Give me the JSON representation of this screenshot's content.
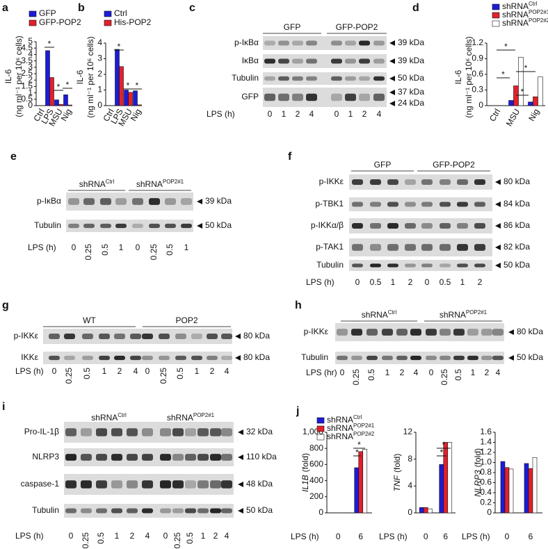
{
  "chart_data": [
    {
      "type": "bar",
      "label": "a",
      "ylabel": "IL-6",
      "ylabel_unit": "(ng ml⁻¹ per 10⁶ cells)",
      "categories": [
        "Ctrl",
        "LPS",
        "MSU",
        "Nig"
      ],
      "series": [
        {
          "name": "GFP",
          "color": "#1c1cd8",
          "values": [
            0,
            4.3,
            0.45,
            0.85
          ]
        },
        {
          "name": "GFP-POP2",
          "color": "#e3202b",
          "values": [
            0,
            2.2,
            0.1,
            0.05
          ]
        }
      ],
      "ylim": [
        0,
        5
      ],
      "yticks": [
        0,
        0.5,
        1,
        1.5,
        2,
        2.5,
        3,
        3.5,
        4,
        4.5,
        5
      ],
      "annotations": [
        "*",
        "*",
        "*"
      ]
    },
    {
      "type": "bar",
      "label": "b",
      "ylabel": "IL-6",
      "ylabel_unit": "(ng ml⁻¹ per 10⁶ cells)",
      "categories": [
        "Ctrl",
        "LPS",
        "MSU",
        "Nig"
      ],
      "series": [
        {
          "name": "Ctrl",
          "color": "#1c1cd8",
          "values": [
            0,
            3.6,
            1.0,
            0.95
          ]
        },
        {
          "name": "His-POP2",
          "color": "#e3202b",
          "values": [
            0,
            2.5,
            0.85,
            0.05
          ]
        }
      ],
      "ylim": [
        0,
        4
      ],
      "yticks": [
        0,
        1,
        2,
        3,
        4
      ],
      "annotations": [
        "*",
        "*",
        "*"
      ]
    },
    {
      "type": "bar",
      "label": "d",
      "ylabel": "IL-6",
      "ylabel_unit": "(ng ml⁻¹ per 10⁶ cells)",
      "categories": [
        "Ctrl",
        "MSU",
        "Nig"
      ],
      "series": [
        {
          "name": "shRNA",
          "superscript": "Ctrl",
          "color": "#1c1cd8",
          "values": [
            0,
            0.1,
            0.07
          ]
        },
        {
          "name": "shRNA",
          "superscript": "POP2#1",
          "color": "#e3202b",
          "values": [
            0,
            0.38,
            0.17
          ]
        },
        {
          "name": "shRNA",
          "superscript": "POP2#2",
          "color": "#ffffff",
          "values": [
            0,
            0.93,
            0.55
          ]
        }
      ],
      "ylim": [
        0,
        1.2
      ],
      "yticks": [
        0,
        0.3,
        0.6,
        0.9,
        1.2
      ],
      "annotations": [
        "*",
        "*",
        "*",
        "*"
      ]
    },
    {
      "type": "bar",
      "label": "j",
      "ylabel_gene": "IL1B",
      "ylabel": "(fold)",
      "xlabel": "LPS (h)",
      "categories": [
        "0",
        "6"
      ],
      "series": [
        {
          "name": "shRNA",
          "superscript": "Ctrl",
          "color": "#1c1cd8",
          "values": [
            1,
            560
          ]
        },
        {
          "name": "shRNA",
          "superscript": "POP2#1",
          "color": "#e3202b",
          "values": [
            1,
            760
          ]
        },
        {
          "name": "shRNA",
          "superscript": "POP2#2",
          "color": "#ffffff",
          "values": [
            1,
            790
          ]
        }
      ],
      "ylim": [
        0,
        1000
      ],
      "yticks": [
        0,
        200,
        400,
        600,
        800,
        {
          "value": 1000,
          "label": "1,000"
        }
      ],
      "annotations": [
        "*",
        "*"
      ]
    },
    {
      "type": "bar",
      "ylabel_gene": "TNF",
      "ylabel": "(fold)",
      "xlabel": "LPS (h)",
      "categories": [
        "0",
        "6"
      ],
      "series": [
        {
          "color": "#1c1cd8",
          "values": [
            0.8,
            7.2
          ]
        },
        {
          "color": "#e3202b",
          "values": [
            0.8,
            10.5
          ]
        },
        {
          "color": "#ffffff",
          "values": [
            0.6,
            10.5
          ]
        }
      ],
      "ylim": [
        0,
        12
      ],
      "yticks": [
        0,
        4,
        8,
        12
      ],
      "annotations": [
        "*",
        "*"
      ]
    },
    {
      "type": "bar",
      "ylabel_gene": "NLRP3",
      "ylabel": "(fold)",
      "xlabel": "LPS (h)",
      "categories": [
        "0",
        "6"
      ],
      "series": [
        {
          "color": "#1c1cd8",
          "values": [
            1.02,
            0.98
          ]
        },
        {
          "color": "#e3202b",
          "values": [
            0.9,
            0.88
          ]
        },
        {
          "color": "#ffffff",
          "values": [
            0.87,
            1.1
          ]
        }
      ],
      "ylim": [
        0,
        1.6
      ],
      "yticks": [
        0,
        0.2,
        0.4,
        0.6,
        0.8,
        {
          "value": 1,
          "label": "1.0"
        },
        1.2,
        1.4,
        1.6
      ]
    }
  ],
  "blots": [
    {
      "label": "c",
      "groups": [
        {
          "text": "GFP"
        },
        {
          "text": "GFP-POP2"
        }
      ],
      "rows": [
        {
          "name": "p-IκBα",
          "kda": [
            "39 kDa"
          ]
        },
        {
          "name": "IκBα",
          "kda": [
            "39 kDa"
          ]
        },
        {
          "name": "Tubulin",
          "kda": [
            "50 kDa"
          ]
        },
        {
          "name": "GFP",
          "kda": [
            "37 kDa",
            "24 kDa"
          ]
        }
      ],
      "xlabel": "LPS (h)",
      "lanes": [
        "0",
        "1",
        "2",
        "4",
        "0",
        "1",
        "2",
        "4"
      ]
    },
    {
      "label": "e",
      "groups": [
        {
          "text": "shRNA",
          "sup": "Ctrl"
        },
        {
          "text": "shRNA",
          "sup": "POP2#1"
        }
      ],
      "rows": [
        {
          "name": "p-IκBα",
          "kda": [
            "39 kDa"
          ]
        },
        {
          "name": "Tubulin",
          "kda": [
            "50 kDa"
          ]
        }
      ],
      "xlabel": "LPS (h)",
      "lanes": [
        "0",
        "0.25",
        "0.5",
        "1",
        "0",
        "0.25",
        "0.5",
        "1"
      ]
    },
    {
      "label": "f",
      "groups": [
        {
          "text": "GFP"
        },
        {
          "text": "GFP-POP2"
        }
      ],
      "rows": [
        {
          "name": "p-IKKε",
          "kda": [
            "80 kDa"
          ]
        },
        {
          "name": "p-TBK1",
          "kda": [
            "84 kDa"
          ]
        },
        {
          "name": "p-IKKα/β",
          "kda": [
            "86 kDa"
          ]
        },
        {
          "name": "p-TAK1",
          "kda": [
            "82 kDa"
          ]
        },
        {
          "name": "Tubulin",
          "kda": [
            "50 kDa"
          ]
        }
      ],
      "xlabel": "LPS (h)",
      "lanes": [
        "0",
        "0.5",
        "1",
        "2",
        "0",
        "0.5",
        "1",
        "2"
      ]
    },
    {
      "label": "g",
      "groups": [
        {
          "text": "WT"
        },
        {
          "text": "POP2"
        }
      ],
      "rows": [
        {
          "name": "p-IKKε",
          "kda": [
            "80 kDa"
          ]
        },
        {
          "name": "IKKε",
          "kda": [
            "80 kDa"
          ]
        }
      ],
      "xlabel": "LPS (h)",
      "lanes": [
        "0",
        "0.25",
        "0.5",
        "1",
        "2",
        "4",
        "0",
        "0.25",
        "0.5",
        "1",
        "2",
        "4"
      ]
    },
    {
      "label": "h",
      "groups": [
        {
          "text": "shRNA",
          "sup": "Ctrl"
        },
        {
          "text": "shRNA",
          "sup": "POP2#1"
        }
      ],
      "rows": [
        {
          "name": "p-IKKε",
          "kda": [
            "80 kDa"
          ]
        },
        {
          "name": "Tubulin",
          "kda": [
            "50 kDa"
          ]
        }
      ],
      "xlabel": "LPS (hr)",
      "lanes": [
        "0",
        "0.25",
        "0.5",
        "1",
        "2",
        "4",
        "0",
        "0.25",
        "0.5",
        "1",
        "2",
        "4"
      ]
    },
    {
      "label": "i",
      "groups": [
        {
          "text": "shRNA",
          "sup": "Ctrl"
        },
        {
          "text": "shRNA",
          "sup": "POP2#1"
        }
      ],
      "rows": [
        {
          "name": "Pro-IL-1β",
          "kda": [
            "32 kDa"
          ]
        },
        {
          "name": "NLRP3",
          "kda": [
            "110 kDa"
          ]
        },
        {
          "name": "caspase-1",
          "kda": [
            "48 kDa"
          ]
        },
        {
          "name": "Tubulin",
          "kda": [
            "50 kDa"
          ]
        }
      ],
      "xlabel": "LPS (h)",
      "lanes": [
        "0",
        "0.25",
        "0.5",
        "1",
        "2",
        "4",
        "0",
        "0.25",
        "0.5",
        "1",
        "2",
        "4"
      ]
    }
  ]
}
